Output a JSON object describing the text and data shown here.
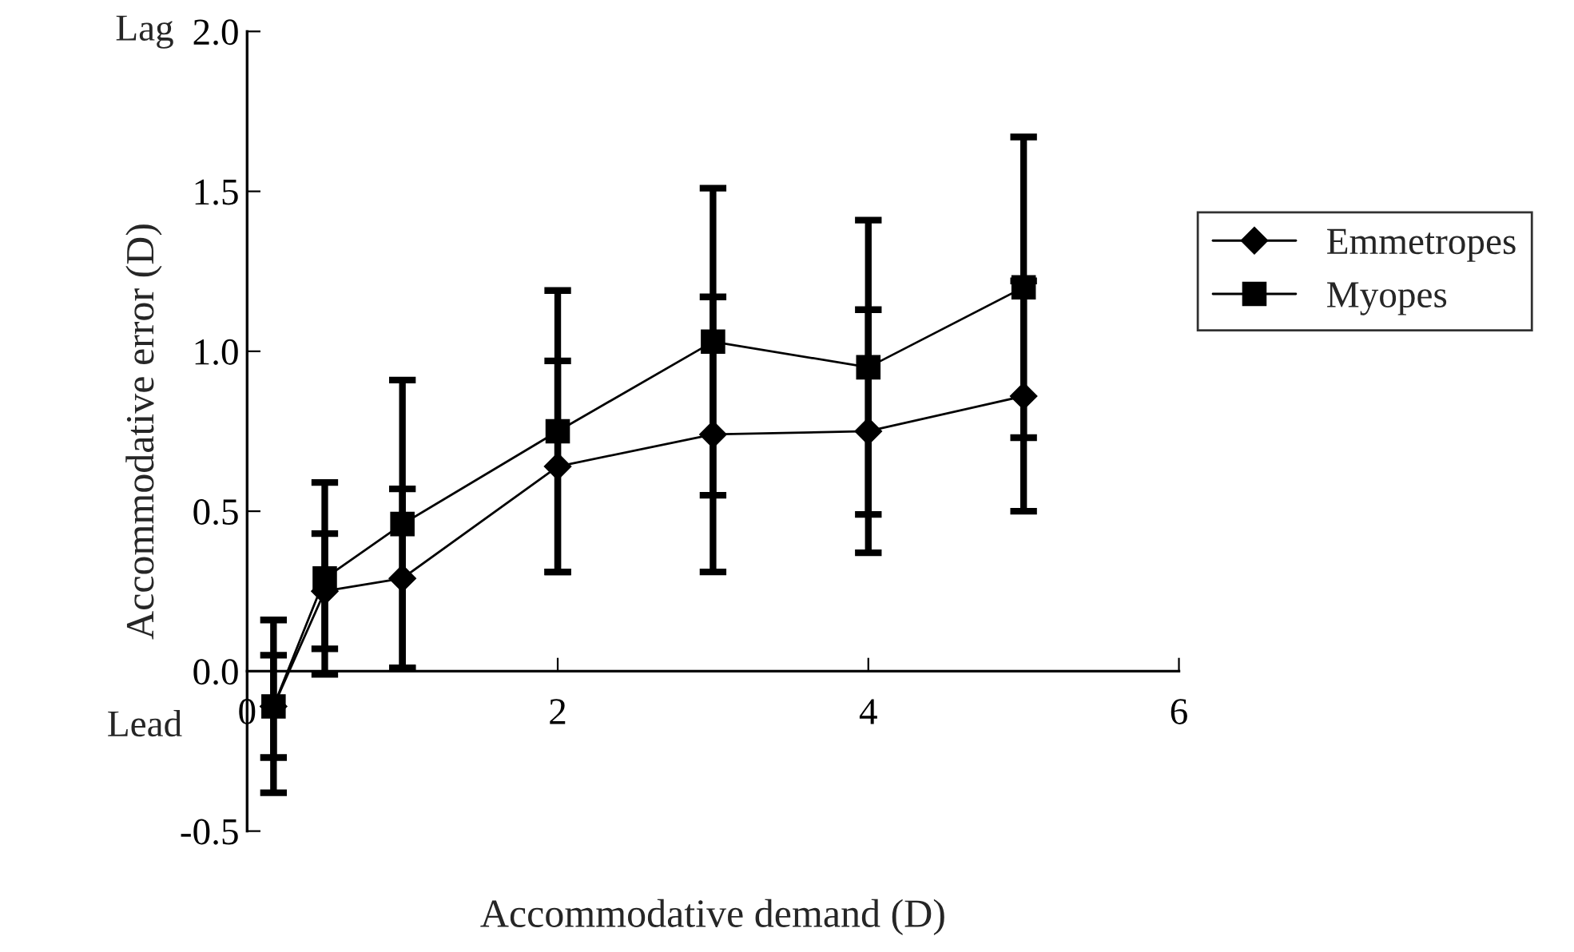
{
  "chart_data": {
    "type": "line",
    "xlabel": "Accommodative demand (D)",
    "ylabel": "Accommodative error (D)",
    "x": [
      0.17,
      0.5,
      1,
      2,
      3,
      4,
      5
    ],
    "xlim": [
      0,
      6
    ],
    "xticks": [
      0,
      2,
      4,
      6
    ],
    "ylim": [
      -0.5,
      2.0
    ],
    "yticks": [
      -0.5,
      {
        "value": 0,
        "label": "0.0"
      },
      0.5,
      {
        "value": 1,
        "label": "1.0"
      },
      1.5,
      {
        "value": 2,
        "label": "2.0"
      }
    ],
    "series": [
      {
        "name": "Emmetropes",
        "color": "#000000",
        "marker": "diamond",
        "values": [
          -0.11,
          0.25,
          0.29,
          0.64,
          0.74,
          0.75,
          0.86
        ],
        "errors": [
          0.16,
          0.18,
          0.28,
          0.33,
          0.43,
          0.38,
          0.36
        ]
      },
      {
        "name": "Myopes",
        "color": "#000000",
        "marker": "square",
        "values": [
          -0.11,
          0.29,
          0.46,
          0.75,
          1.03,
          0.95,
          1.2
        ],
        "errors": [
          0.27,
          0.3,
          0.45,
          0.44,
          0.48,
          0.46,
          0.47
        ]
      }
    ],
    "annotations": [
      "Lag",
      "Lead"
    ],
    "legend": "right",
    "grid": false,
    "line_style": "solid"
  }
}
